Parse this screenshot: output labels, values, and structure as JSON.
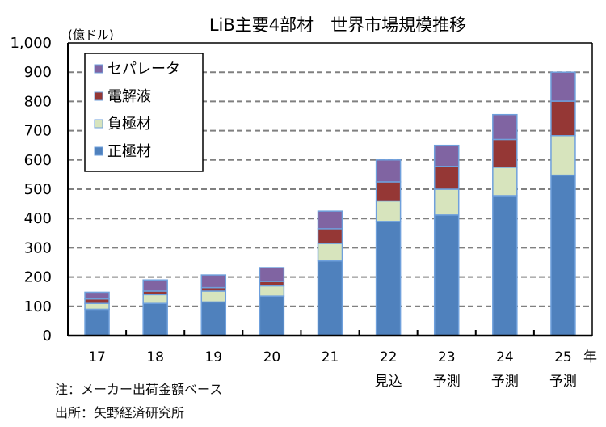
{
  "chart_data": {
    "type": "bar",
    "stacked": true,
    "title": "LiB主要4部材　世界市場規模推移",
    "ylabel": "(億ドル)",
    "xlabel": "年",
    "ylim": [
      0,
      1000
    ],
    "yticks": [
      0,
      100,
      200,
      300,
      400,
      500,
      600,
      700,
      800,
      900,
      1000
    ],
    "ytick_labels": [
      "0",
      "100",
      "200",
      "300",
      "400",
      "500",
      "600",
      "700",
      "800",
      "900",
      "1,000"
    ],
    "grid": "horizontal-dashed",
    "legend_position": "top-left",
    "categories": [
      "17",
      "18",
      "19",
      "20",
      "21",
      "22",
      "23",
      "24",
      "25"
    ],
    "category_notes": [
      "",
      "",
      "",
      "",
      "",
      "見込",
      "予測",
      "予測",
      "予測"
    ],
    "series": [
      {
        "name": "正極材",
        "color": "#4f81bd",
        "values": [
          90,
          110,
          115,
          135,
          255,
          390,
          412,
          478,
          548
        ]
      },
      {
        "name": "負極材",
        "color": "#d7e4bd",
        "values": [
          20,
          30,
          37,
          35,
          60,
          70,
          88,
          97,
          135
        ]
      },
      {
        "name": "電解液",
        "color": "#953735",
        "values": [
          15,
          12,
          12,
          15,
          50,
          65,
          78,
          95,
          118
        ]
      },
      {
        "name": "セパレータ",
        "color": "#8064a2",
        "values": [
          23,
          38,
          43,
          47,
          60,
          75,
          72,
          85,
          99
        ]
      }
    ],
    "legend_order": [
      "セパレータ",
      "電解液",
      "負極材",
      "正極材"
    ]
  },
  "notes": {
    "note": "注：メーカー出荷金額ベース",
    "source": "出所：矢野経済研究所"
  }
}
